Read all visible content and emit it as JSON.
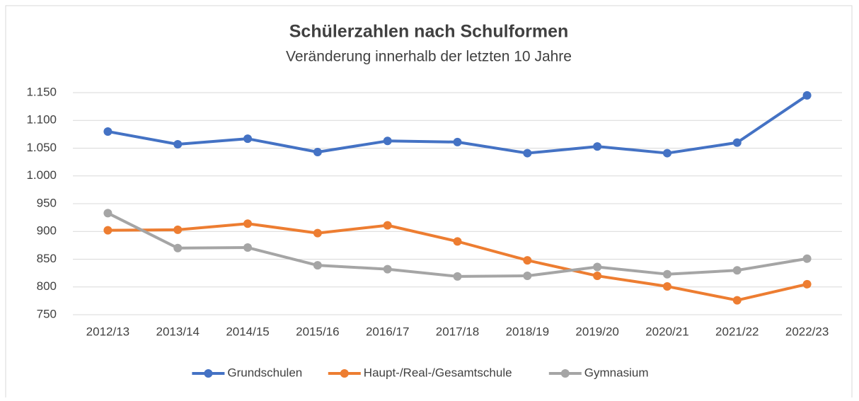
{
  "chart_data": {
    "type": "line",
    "title": "Schülerzahlen nach Schulformen",
    "subtitle": "Veränderung innerhalb der letzten 10 Jahre",
    "categories": [
      "2012/13",
      "2013/14",
      "2014/15",
      "2015/16",
      "2016/17",
      "2017/18",
      "2018/19",
      "2019/20",
      "2020/21",
      "2021/22",
      "2022/23"
    ],
    "series": [
      {
        "name": "Grundschulen",
        "color": "#4472c4",
        "values": [
          1080,
          1057,
          1067,
          1043,
          1063,
          1061,
          1041,
          1053,
          1041,
          1060,
          1145
        ]
      },
      {
        "name": "Haupt-/Real-/Gesamtschule",
        "color": "#ed7d31",
        "values": [
          902,
          903,
          914,
          897,
          911,
          882,
          848,
          820,
          801,
          776,
          805
        ]
      },
      {
        "name": "Gymnasium",
        "color": "#a5a5a5",
        "values": [
          933,
          870,
          871,
          839,
          832,
          819,
          820,
          836,
          823,
          830,
          851
        ]
      }
    ],
    "ylim": [
      750,
      1150
    ],
    "yticks": [
      750,
      800,
      850,
      900,
      950,
      {
        "value": 1000,
        "label": "1.000"
      },
      {
        "value": 1050,
        "label": "1.050"
      },
      {
        "value": 1100,
        "label": "1.100"
      },
      {
        "value": 1150,
        "label": "1.150"
      }
    ],
    "grid": true,
    "legend": "bottom"
  }
}
